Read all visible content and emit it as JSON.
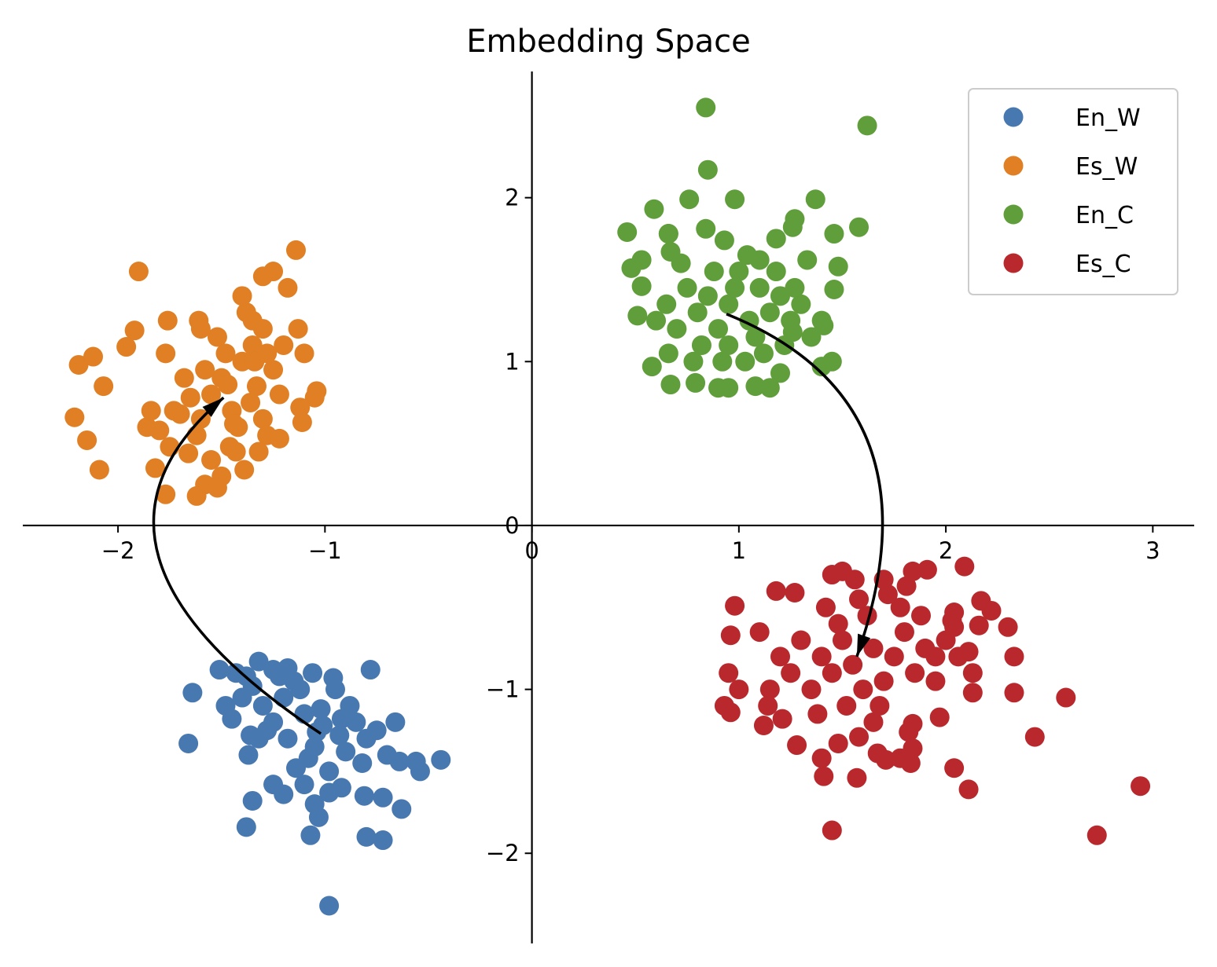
{
  "chart_data": {
    "type": "scatter",
    "title": "Embedding Space",
    "xlabel": "",
    "ylabel": "",
    "xlim": [
      -2.46,
      3.2
    ],
    "ylim": [
      -2.55,
      2.77
    ],
    "xticks": [
      -2,
      -1,
      0,
      1,
      2,
      3
    ],
    "xtick_labels": [
      "−2",
      "−1",
      "0",
      "1",
      "2",
      "3"
    ],
    "yticks": [
      -2,
      -1,
      0,
      1,
      2
    ],
    "ytick_labels": [
      "−2",
      "−1",
      "0",
      "1",
      "2"
    ],
    "grid": false,
    "axes_style": "centered spines through origin",
    "legend_position": "top-right",
    "series": [
      {
        "name": "En_W",
        "color": "#4878b0",
        "points": [
          [
            -1.01,
            -1.22
          ],
          [
            -1.1,
            -1.15
          ],
          [
            -0.93,
            -1.28
          ],
          [
            -1.2,
            -1.05
          ],
          [
            -1.05,
            -1.35
          ],
          [
            -0.88,
            -1.1
          ],
          [
            -1.25,
            -1.2
          ],
          [
            -1.15,
            -0.95
          ],
          [
            -0.95,
            -1.0
          ],
          [
            -1.3,
            -1.1
          ],
          [
            -1.08,
            -1.42
          ],
          [
            -0.8,
            -1.3
          ],
          [
            -1.18,
            -1.3
          ],
          [
            -1.35,
            -0.98
          ],
          [
            -0.98,
            -1.5
          ],
          [
            -1.12,
            -1.0
          ],
          [
            -0.85,
            -1.2
          ],
          [
            -1.28,
            -1.25
          ],
          [
            -1.4,
            -1.05
          ],
          [
            -0.9,
            -1.38
          ],
          [
            -1.02,
            -1.12
          ],
          [
            -1.22,
            -0.92
          ],
          [
            -0.75,
            -1.25
          ],
          [
            -1.32,
            -1.3
          ],
          [
            -0.96,
            -0.93
          ],
          [
            -1.14,
            -1.48
          ],
          [
            -0.7,
            -1.4
          ],
          [
            -1.45,
            -1.18
          ],
          [
            -1.06,
            -0.9
          ],
          [
            -0.82,
            -1.45
          ],
          [
            -1.25,
            -0.88
          ],
          [
            -1.38,
            -0.92
          ],
          [
            -0.92,
            -1.6
          ],
          [
            -1.1,
            -1.58
          ],
          [
            -0.64,
            -1.44
          ],
          [
            -0.44,
            -1.43
          ],
          [
            -0.56,
            -1.44
          ],
          [
            -0.54,
            -1.5
          ],
          [
            -0.66,
            -1.2
          ],
          [
            -0.78,
            -0.88
          ],
          [
            -1.64,
            -1.02
          ],
          [
            -1.66,
            -1.33
          ],
          [
            -1.51,
            -0.88
          ],
          [
            -1.43,
            -0.9
          ],
          [
            -1.37,
            -1.4
          ],
          [
            -1.25,
            -1.58
          ],
          [
            -1.2,
            -1.64
          ],
          [
            -1.05,
            -1.7
          ],
          [
            -1.03,
            -1.78
          ],
          [
            -1.07,
            -1.89
          ],
          [
            -0.98,
            -1.63
          ],
          [
            -0.81,
            -1.65
          ],
          [
            -0.72,
            -1.66
          ],
          [
            -0.63,
            -1.73
          ],
          [
            -0.8,
            -1.9
          ],
          [
            -0.72,
            -1.92
          ],
          [
            -1.35,
            -1.68
          ],
          [
            -1.38,
            -1.84
          ],
          [
            -0.98,
            -2.32
          ],
          [
            -1.32,
            -0.83
          ],
          [
            -1.18,
            -0.87
          ],
          [
            -1.36,
            -1.28
          ],
          [
            -1.48,
            -1.1
          ],
          [
            -0.92,
            -1.18
          ],
          [
            -1.04,
            -1.26
          ]
        ]
      },
      {
        "name": "Es_W",
        "color": "#e07f23",
        "points": [
          [
            -1.4,
            1.0
          ],
          [
            -1.5,
            0.9
          ],
          [
            -1.35,
            1.1
          ],
          [
            -1.55,
            0.8
          ],
          [
            -1.3,
            1.2
          ],
          [
            -1.45,
            0.7
          ],
          [
            -1.38,
            1.3
          ],
          [
            -1.6,
            0.65
          ],
          [
            -1.25,
            0.95
          ],
          [
            -1.48,
            1.05
          ],
          [
            -1.33,
            0.85
          ],
          [
            -1.58,
            0.95
          ],
          [
            -1.42,
            0.6
          ],
          [
            -1.28,
            1.05
          ],
          [
            -1.52,
            1.15
          ],
          [
            -1.36,
            0.75
          ],
          [
            -1.62,
            0.55
          ],
          [
            -1.46,
            0.48
          ],
          [
            -1.2,
            1.1
          ],
          [
            -1.55,
            0.4
          ],
          [
            -1.4,
            1.4
          ],
          [
            -1.3,
            0.65
          ],
          [
            -1.5,
            0.3
          ],
          [
            -1.65,
            0.78
          ],
          [
            -1.22,
            0.8
          ],
          [
            -1.7,
            0.68
          ],
          [
            -1.35,
            1.25
          ],
          [
            -1.28,
            0.55
          ],
          [
            -1.43,
            0.45
          ],
          [
            -1.58,
            0.25
          ],
          [
            -1.9,
            1.55
          ],
          [
            -1.14,
            1.68
          ],
          [
            -1.25,
            1.55
          ],
          [
            -1.3,
            1.52
          ],
          [
            -1.18,
            1.45
          ],
          [
            -1.13,
            1.2
          ],
          [
            -1.1,
            1.05
          ],
          [
            -1.04,
            0.82
          ],
          [
            -1.05,
            0.78
          ],
          [
            -1.11,
            0.63
          ],
          [
            -1.12,
            0.72
          ],
          [
            -1.22,
            0.53
          ],
          [
            -1.32,
            0.45
          ],
          [
            -1.39,
            0.34
          ],
          [
            -1.52,
            0.23
          ],
          [
            -1.62,
            0.18
          ],
          [
            -1.77,
            0.19
          ],
          [
            -1.82,
            0.35
          ],
          [
            -1.75,
            0.48
          ],
          [
            -1.86,
            0.6
          ],
          [
            -1.84,
            0.7
          ],
          [
            -1.73,
            0.7
          ],
          [
            -1.68,
            0.9
          ],
          [
            -1.77,
            1.05
          ],
          [
            -1.61,
            1.25
          ],
          [
            -1.6,
            1.2
          ],
          [
            -1.76,
            1.25
          ],
          [
            -1.92,
            1.19
          ],
          [
            -1.96,
            1.09
          ],
          [
            -2.19,
            0.98
          ],
          [
            -2.12,
            1.03
          ],
          [
            -2.07,
            0.85
          ],
          [
            -2.21,
            0.66
          ],
          [
            -2.15,
            0.52
          ],
          [
            -2.09,
            0.34
          ],
          [
            -1.8,
            0.58
          ],
          [
            -1.44,
            0.62
          ],
          [
            -1.34,
            1.0
          ],
          [
            -1.47,
            0.86
          ],
          [
            -1.66,
            0.44
          ]
        ]
      },
      {
        "name": "En_C",
        "color": "#5f9e3a",
        "points": [
          [
            0.95,
            1.35
          ],
          [
            1.05,
            1.25
          ],
          [
            0.85,
            1.4
          ],
          [
            1.1,
            1.45
          ],
          [
            0.9,
            1.2
          ],
          [
            1.0,
            1.55
          ],
          [
            1.15,
            1.3
          ],
          [
            0.8,
            1.3
          ],
          [
            1.2,
            1.4
          ],
          [
            0.95,
            1.1
          ],
          [
            1.08,
            1.15
          ],
          [
            0.75,
            1.45
          ],
          [
            1.25,
            1.25
          ],
          [
            0.88,
            1.55
          ],
          [
            1.12,
            1.05
          ],
          [
            0.7,
            1.2
          ],
          [
            1.3,
            1.35
          ],
          [
            0.98,
            1.45
          ],
          [
            0.82,
            1.1
          ],
          [
            1.18,
            1.55
          ],
          [
            0.92,
            1.0
          ],
          [
            1.03,
            1.0
          ],
          [
            1.35,
            1.15
          ],
          [
            0.65,
            1.35
          ],
          [
            1.22,
            1.1
          ],
          [
            0.78,
            1.0
          ],
          [
            0.66,
            1.05
          ],
          [
            1.4,
            1.25
          ],
          [
            1.27,
            1.45
          ],
          [
            0.6,
            1.25
          ],
          [
            0.84,
            2.55
          ],
          [
            1.62,
            2.44
          ],
          [
            0.85,
            2.17
          ],
          [
            0.98,
            1.99
          ],
          [
            0.76,
            1.99
          ],
          [
            0.59,
            1.93
          ],
          [
            0.46,
            1.79
          ],
          [
            0.66,
            1.78
          ],
          [
            0.84,
            1.81
          ],
          [
            1.27,
            1.87
          ],
          [
            1.26,
            1.82
          ],
          [
            1.37,
            1.99
          ],
          [
            1.58,
            1.82
          ],
          [
            1.46,
            1.78
          ],
          [
            1.18,
            1.75
          ],
          [
            1.48,
            1.58
          ],
          [
            1.33,
            1.62
          ],
          [
            1.46,
            1.44
          ],
          [
            1.45,
            1.0
          ],
          [
            1.4,
            0.97
          ],
          [
            1.2,
            0.93
          ],
          [
            1.08,
            0.85
          ],
          [
            1.15,
            0.84
          ],
          [
            0.95,
            0.84
          ],
          [
            0.9,
            0.84
          ],
          [
            0.79,
            0.87
          ],
          [
            0.67,
            0.86
          ],
          [
            0.58,
            0.97
          ],
          [
            0.51,
            1.28
          ],
          [
            0.53,
            1.46
          ],
          [
            0.48,
            1.57
          ],
          [
            0.53,
            1.62
          ],
          [
            0.67,
            1.67
          ],
          [
            0.66,
            1.78
          ],
          [
            0.93,
            1.74
          ],
          [
            1.04,
            1.65
          ],
          [
            1.41,
            1.22
          ],
          [
            1.26,
            1.18
          ],
          [
            0.72,
            1.6
          ],
          [
            1.1,
            1.62
          ]
        ]
      },
      {
        "name": "Es_C",
        "color": "#b8282c",
        "points": [
          [
            1.55,
            -0.85
          ],
          [
            1.65,
            -0.75
          ],
          [
            1.45,
            -0.9
          ],
          [
            1.7,
            -0.95
          ],
          [
            1.5,
            -0.7
          ],
          [
            1.6,
            -1.0
          ],
          [
            1.75,
            -0.8
          ],
          [
            1.4,
            -0.8
          ],
          [
            1.8,
            -0.65
          ],
          [
            1.35,
            -1.0
          ],
          [
            1.85,
            -0.9
          ],
          [
            1.48,
            -0.6
          ],
          [
            1.62,
            -0.55
          ],
          [
            1.3,
            -0.7
          ],
          [
            1.68,
            -1.1
          ],
          [
            1.9,
            -0.75
          ],
          [
            1.25,
            -0.9
          ],
          [
            1.52,
            -1.1
          ],
          [
            1.78,
            -0.5
          ],
          [
            1.42,
            -0.5
          ],
          [
            1.58,
            -0.45
          ],
          [
            1.95,
            -0.95
          ],
          [
            1.2,
            -0.8
          ],
          [
            1.72,
            -0.42
          ],
          [
            1.38,
            -1.15
          ],
          [
            1.88,
            -0.55
          ],
          [
            1.15,
            -1.0
          ],
          [
            1.65,
            -1.2
          ],
          [
            2.0,
            -0.7
          ],
          [
            1.1,
            -0.65
          ],
          [
            1.45,
            -0.3
          ],
          [
            1.5,
            -0.28
          ],
          [
            1.56,
            -0.33
          ],
          [
            1.7,
            -0.33
          ],
          [
            1.81,
            -0.37
          ],
          [
            1.84,
            -0.28
          ],
          [
            1.91,
            -0.27
          ],
          [
            2.09,
            -0.25
          ],
          [
            1.18,
            -0.4
          ],
          [
            1.27,
            -0.41
          ],
          [
            0.98,
            -0.49
          ],
          [
            0.96,
            -0.67
          ],
          [
            0.95,
            -0.9
          ],
          [
            1.0,
            -1.0
          ],
          [
            0.93,
            -1.1
          ],
          [
            0.96,
            -1.14
          ],
          [
            1.12,
            -1.22
          ],
          [
            1.21,
            -1.18
          ],
          [
            1.28,
            -1.34
          ],
          [
            1.4,
            -1.42
          ],
          [
            1.48,
            -1.33
          ],
          [
            1.57,
            -1.54
          ],
          [
            1.58,
            -1.29
          ],
          [
            1.67,
            -1.39
          ],
          [
            1.71,
            -1.43
          ],
          [
            1.78,
            -1.42
          ],
          [
            1.83,
            -1.45
          ],
          [
            1.84,
            -1.36
          ],
          [
            1.82,
            -1.26
          ],
          [
            1.84,
            -1.21
          ],
          [
            1.97,
            -1.17
          ],
          [
            2.04,
            -1.48
          ],
          [
            2.11,
            -1.61
          ],
          [
            1.41,
            -1.53
          ],
          [
            1.45,
            -1.86
          ],
          [
            2.33,
            -1.02
          ],
          [
            2.43,
            -1.29
          ],
          [
            2.58,
            -1.05
          ],
          [
            2.73,
            -1.89
          ],
          [
            2.94,
            -1.59
          ],
          [
            2.33,
            -0.8
          ],
          [
            2.3,
            -0.62
          ],
          [
            2.22,
            -0.52
          ],
          [
            2.17,
            -0.46
          ],
          [
            2.16,
            -0.61
          ],
          [
            2.03,
            -0.58
          ],
          [
            2.04,
            -0.53
          ],
          [
            2.04,
            -0.62
          ],
          [
            2.11,
            -0.77
          ],
          [
            2.13,
            -0.9
          ],
          [
            2.06,
            -0.8
          ],
          [
            2.13,
            -1.02
          ],
          [
            1.95,
            -0.8
          ],
          [
            1.14,
            -1.1
          ]
        ]
      }
    ],
    "annotations": [
      {
        "type": "curved-arrow",
        "from": [
          -1.02,
          -1.27
        ],
        "to": [
          -1.49,
          0.78
        ],
        "control": [
          -2.35,
          -0.15
        ],
        "color": "#000000"
      },
      {
        "type": "curved-arrow",
        "from": [
          0.94,
          1.29
        ],
        "to": [
          1.57,
          -0.8
        ],
        "control": [
          2.0,
          0.75
        ],
        "color": "#000000"
      }
    ]
  }
}
